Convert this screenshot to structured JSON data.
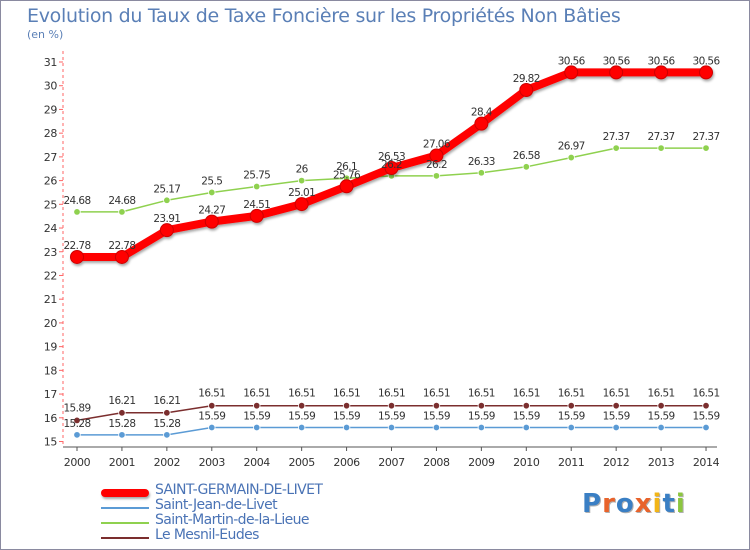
{
  "chart_data": {
    "type": "line",
    "title": "Evolution du Taux de Taxe Foncière sur les Propriétés Non Bâties",
    "subtitle": "(en %)",
    "categories": [
      "2000",
      "2001",
      "2002",
      "2003",
      "2004",
      "2005",
      "2006",
      "2007",
      "2008",
      "2009",
      "2010",
      "2011",
      "2012",
      "2013",
      "2014"
    ],
    "ylim": [
      15,
      31
    ],
    "yticks": [
      "15",
      "16",
      "17",
      "18",
      "19",
      "20",
      "21",
      "22",
      "23",
      "24",
      "25",
      "26",
      "27",
      "28",
      "29",
      "30",
      "31"
    ],
    "grid": false,
    "legend_position": "bottom-left",
    "series": [
      {
        "name": "SAINT-GERMAIN-DE-LIVET",
        "color": "#ff0000",
        "values": [
          22.78,
          22.78,
          23.91,
          24.27,
          24.51,
          25.01,
          25.76,
          26.53,
          27.06,
          28.4,
          29.82,
          30.56,
          30.56,
          30.56,
          30.56
        ],
        "labels": [
          "22.78",
          "22.78",
          "23.91",
          "24.27",
          "24.51",
          "25.01",
          "25.76",
          "26.53",
          "27.06",
          "28.4",
          "29.82",
          "30.56",
          "30.56",
          "30.56",
          "30.56"
        ]
      },
      {
        "name": "Saint-Jean-de-Livet",
        "color": "#5b9bd5",
        "values": [
          15.28,
          15.28,
          15.28,
          15.59,
          15.59,
          15.59,
          15.59,
          15.59,
          15.59,
          15.59,
          15.59,
          15.59,
          15.59,
          15.59,
          15.59
        ],
        "labels": [
          "15.28",
          "15.28",
          "15.28",
          "15.59",
          "15.59",
          "15.59",
          "15.59",
          "15.59",
          "15.59",
          "15.59",
          "15.59",
          "15.59",
          "15.59",
          "15.59",
          "15.59"
        ]
      },
      {
        "name": "Saint-Martin-de-la-Lieue",
        "color": "#8fd14f",
        "values": [
          24.68,
          24.68,
          25.17,
          25.5,
          25.75,
          26,
          26.1,
          26.2,
          26.2,
          26.33,
          26.58,
          26.97,
          27.37,
          27.37,
          27.37
        ],
        "labels": [
          "24.68",
          "24.68",
          "25.17",
          "25.5",
          "25.75",
          "26",
          "26.1",
          "26.2",
          "26.2",
          "26.33",
          "26.58",
          "26.97",
          "27.37",
          "27.37",
          "27.37"
        ]
      },
      {
        "name": "Le Mesnil-Eudes",
        "color": "#7b2e2e",
        "values": [
          15.89,
          16.21,
          16.21,
          16.51,
          16.51,
          16.51,
          16.51,
          16.51,
          16.51,
          16.51,
          16.51,
          16.51,
          16.51,
          16.51,
          16.51
        ],
        "labels": [
          "15.89",
          "16.21",
          "16.21",
          "16.51",
          "16.51",
          "16.51",
          "16.51",
          "16.51",
          "16.51",
          "16.51",
          "16.51",
          "16.51",
          "16.51",
          "16.51",
          "16.51"
        ]
      }
    ]
  },
  "legend": {
    "items": [
      {
        "label": "SAINT-GERMAIN-DE-LIVET",
        "color": "#ff0000"
      },
      {
        "label": "Saint-Jean-de-Livet",
        "color": "#5b9bd5"
      },
      {
        "label": "Saint-Martin-de-la-Lieue",
        "color": "#8fd14f"
      },
      {
        "label": "Le Mesnil-Eudes",
        "color": "#7b2e2e"
      }
    ]
  },
  "logo": {
    "letters": [
      "P",
      "r",
      "o",
      "x",
      "i",
      "t",
      "i"
    ],
    "colors": [
      "#3a7fc4",
      "#e8632b",
      "#3a7fc4",
      "#e8632b",
      "#f2b517",
      "#3a7fc4",
      "#8cc63f"
    ]
  }
}
